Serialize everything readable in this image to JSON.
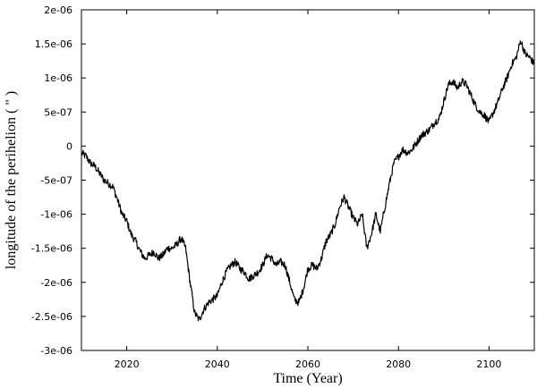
{
  "chart_data": {
    "type": "line",
    "title": "",
    "xlabel": "Time (Year)",
    "ylabel": "longitude of the perihelion ( \" )",
    "xlim": [
      2010,
      2110
    ],
    "ylim": [
      -3e-06,
      2e-06
    ],
    "grid": false,
    "x_ticks": [
      {
        "value": 2020,
        "label": "2020"
      },
      {
        "value": 2040,
        "label": "2040"
      },
      {
        "value": 2060,
        "label": "2060"
      },
      {
        "value": 2080,
        "label": "2080"
      },
      {
        "value": 2100,
        "label": "2100"
      }
    ],
    "y_ticks": [
      {
        "value": 2e-06,
        "label": "2e-06"
      },
      {
        "value": 1.5e-06,
        "label": "1.5e-06"
      },
      {
        "value": 1e-06,
        "label": "1e-06"
      },
      {
        "value": 5e-07,
        "label": "5e-07"
      },
      {
        "value": 0,
        "label": "0"
      },
      {
        "value": -5e-07,
        "label": "-5e-07"
      },
      {
        "value": -1e-06,
        "label": "-1e-06"
      },
      {
        "value": -1.5e-06,
        "label": "-1.5e-06"
      },
      {
        "value": -2e-06,
        "label": "-2e-06"
      },
      {
        "value": -2.5e-06,
        "label": "-2.5e-06"
      },
      {
        "value": -3e-06,
        "label": "-3e-06"
      }
    ],
    "series": [
      {
        "color": "#000000",
        "x": [
          2010,
          2011,
          2012,
          2013,
          2014,
          2015,
          2016,
          2017,
          2018,
          2019,
          2020,
          2021,
          2022,
          2023,
          2024,
          2025,
          2026,
          2027,
          2028,
          2029,
          2030,
          2031,
          2032,
          2033,
          2034,
          2035,
          2036,
          2037,
          2038,
          2039,
          2040,
          2041,
          2042,
          2043,
          2044,
          2045,
          2046,
          2047,
          2048,
          2049,
          2050,
          2051,
          2052,
          2053,
          2054,
          2055,
          2056,
          2057,
          2058,
          2059,
          2060,
          2061,
          2062,
          2063,
          2064,
          2065,
          2066,
          2067,
          2068,
          2069,
          2070,
          2071,
          2072,
          2073,
          2074,
          2075,
          2076,
          2077,
          2078,
          2079,
          2080,
          2081,
          2082,
          2083,
          2084,
          2085,
          2086,
          2087,
          2088,
          2089,
          2090,
          2091,
          2092,
          2093,
          2094,
          2095,
          2096,
          2097,
          2098,
          2099,
          2100,
          2101,
          2102,
          2103,
          2104,
          2105,
          2106,
          2107,
          2108,
          2109,
          2110
        ],
        "y": [
          -1e-07,
          -1.5e-07,
          -2.5e-07,
          -3e-07,
          -4e-07,
          -5e-07,
          -5.5e-07,
          -6e-07,
          -8e-07,
          -1e-06,
          -1.1e-06,
          -1.3e-06,
          -1.4e-06,
          -1.55e-06,
          -1.65e-06,
          -1.6e-06,
          -1.55e-06,
          -1.65e-06,
          -1.6e-06,
          -1.5e-06,
          -1.5e-06,
          -1.45e-06,
          -1.35e-06,
          -1.5e-06,
          -2e-06,
          -2.45e-06,
          -2.55e-06,
          -2.4e-06,
          -2.3e-06,
          -2.25e-06,
          -2.2e-06,
          -2e-06,
          -1.85e-06,
          -1.75e-06,
          -1.7e-06,
          -1.8e-06,
          -1.85e-06,
          -1.95e-06,
          -1.9e-06,
          -1.85e-06,
          -1.75e-06,
          -1.6e-06,
          -1.65e-06,
          -1.75e-06,
          -1.7e-06,
          -1.75e-06,
          -2e-06,
          -2.25e-06,
          -2.3e-06,
          -2.1e-06,
          -1.8e-06,
          -1.75e-06,
          -1.8e-06,
          -1.65e-06,
          -1.4e-06,
          -1.3e-06,
          -1.15e-06,
          -9e-07,
          -7.5e-07,
          -9e-07,
          -1.05e-06,
          -1.15e-06,
          -1e-06,
          -1.5e-06,
          -1.3e-06,
          -1e-06,
          -1.25e-06,
          -9e-07,
          -5.5e-07,
          -2.5e-07,
          -1.5e-07,
          -5e-08,
          -1e-07,
          -5e-08,
          5e-08,
          1.5e-07,
          2e-07,
          2.5e-07,
          3.5e-07,
          4e-07,
          6.5e-07,
          9e-07,
          9.5e-07,
          8.5e-07,
          9.5e-07,
          9e-07,
          7.5e-07,
          6e-07,
          5e-07,
          4.5e-07,
          3.5e-07,
          5e-07,
          6.5e-07,
          8.5e-07,
          1e-06,
          1.2e-06,
          1.3e-06,
          1.55e-06,
          1.35e-06,
          1.3e-06,
          1.2e-06
        ]
      }
    ]
  }
}
